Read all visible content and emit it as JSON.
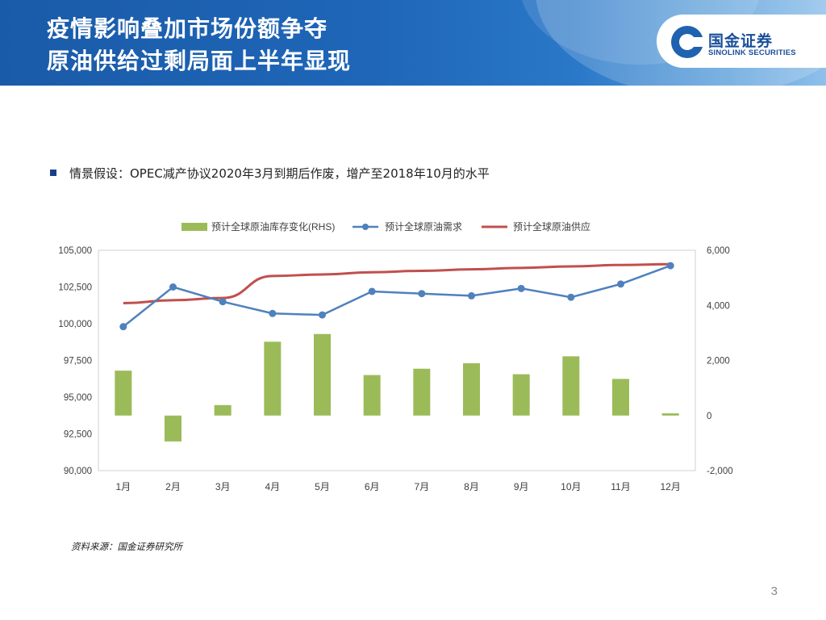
{
  "header": {
    "title_line1": "疫情影响叠加市场份额争夺",
    "title_line2": "原油供给过剩局面上半年显现",
    "logo_cn": "国金证券",
    "logo_en": "SINOLINK SECURITIES"
  },
  "bullet": {
    "text": "情景假设：OPEC减产协议2020年3月到期后作废，增产至2018年10月的水平"
  },
  "source": "资料来源：国金证券研究所",
  "page_number": "3",
  "colors": {
    "bar": "#9bbb59",
    "demand": "#4f81bd",
    "supply": "#c0504d"
  },
  "chart_data": {
    "type": "bar+line",
    "categories": [
      "1月",
      "2月",
      "3月",
      "4月",
      "5月",
      "6月",
      "7月",
      "8月",
      "9月",
      "10月",
      "11月",
      "12月"
    ],
    "series": [
      {
        "name": "预计全球原油库存变化(RHS)",
        "kind": "bar",
        "axis": "right",
        "values": [
          1630,
          -940,
          380,
          2680,
          2960,
          1470,
          1700,
          1900,
          1500,
          2150,
          1330,
          80
        ]
      },
      {
        "name": "预计全球原油需求",
        "kind": "line-marker",
        "axis": "left",
        "values": [
          99800,
          102500,
          101500,
          100700,
          100600,
          102200,
          102050,
          101900,
          102400,
          101800,
          102700,
          103950
        ]
      },
      {
        "name": "预计全球原油供应",
        "kind": "line",
        "axis": "left",
        "values": [
          101400,
          101600,
          101750,
          103250,
          103350,
          103500,
          103600,
          103700,
          103800,
          103900,
          104000,
          104050
        ]
      }
    ],
    "y_left": {
      "min": 90000,
      "max": 105000,
      "ticks": [
        "90,000",
        "92,500",
        "95,000",
        "97,500",
        "100,000",
        "102,500",
        "105,000"
      ]
    },
    "y_right": {
      "min": -2000,
      "max": 6000,
      "ticks": [
        "-2,000",
        "0",
        "2,000",
        "4,000",
        "6,000"
      ]
    },
    "legend_position": "top"
  }
}
